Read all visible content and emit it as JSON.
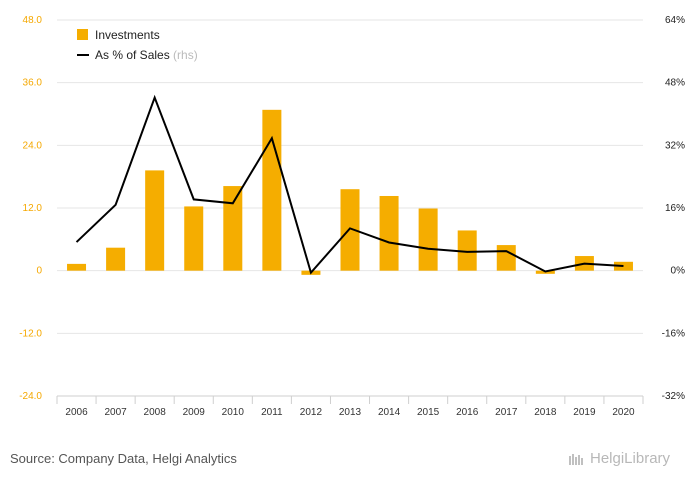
{
  "chart_data": {
    "type": "bar",
    "categories": [
      "2006",
      "2007",
      "2008",
      "2009",
      "2010",
      "2011",
      "2012",
      "2013",
      "2014",
      "2015",
      "2016",
      "2017",
      "2018",
      "2019",
      "2020"
    ],
    "series": [
      {
        "name": "Investments",
        "type": "bar",
        "axis": "left",
        "values": [
          1.3,
          4.4,
          19.2,
          12.3,
          16.2,
          30.8,
          -0.8,
          15.6,
          14.3,
          11.9,
          7.7,
          4.9,
          -0.6,
          2.8,
          1.7
        ]
      },
      {
        "name": "As % of Sales",
        "type": "line",
        "axis": "right",
        "values": [
          7.3,
          16.8,
          44.2,
          18.2,
          17.2,
          33.8,
          -0.5,
          10.8,
          7.2,
          5.6,
          4.8,
          5.0,
          -0.2,
          1.8,
          1.2
        ]
      }
    ],
    "legend_suffix": "(rhs)",
    "ylim_left": [
      -24,
      48
    ],
    "yticks_left": [
      "48.0",
      "36.0",
      "24.0",
      "12.0",
      "0",
      "-12.0",
      "-24.0"
    ],
    "ylim_right": [
      -32,
      64
    ],
    "yticks_right": [
      "64%",
      "48%",
      "32%",
      "16%",
      "0%",
      "-16%",
      "-32%"
    ],
    "grid": true,
    "legend_position": "top-left",
    "colors": {
      "bar": "#f5ad00",
      "line": "#000000",
      "grid": "#e6e6e6"
    }
  },
  "footer": {
    "source": "Source: Company Data, Helgi Analytics",
    "logo_text": "HelgiLibrary"
  }
}
